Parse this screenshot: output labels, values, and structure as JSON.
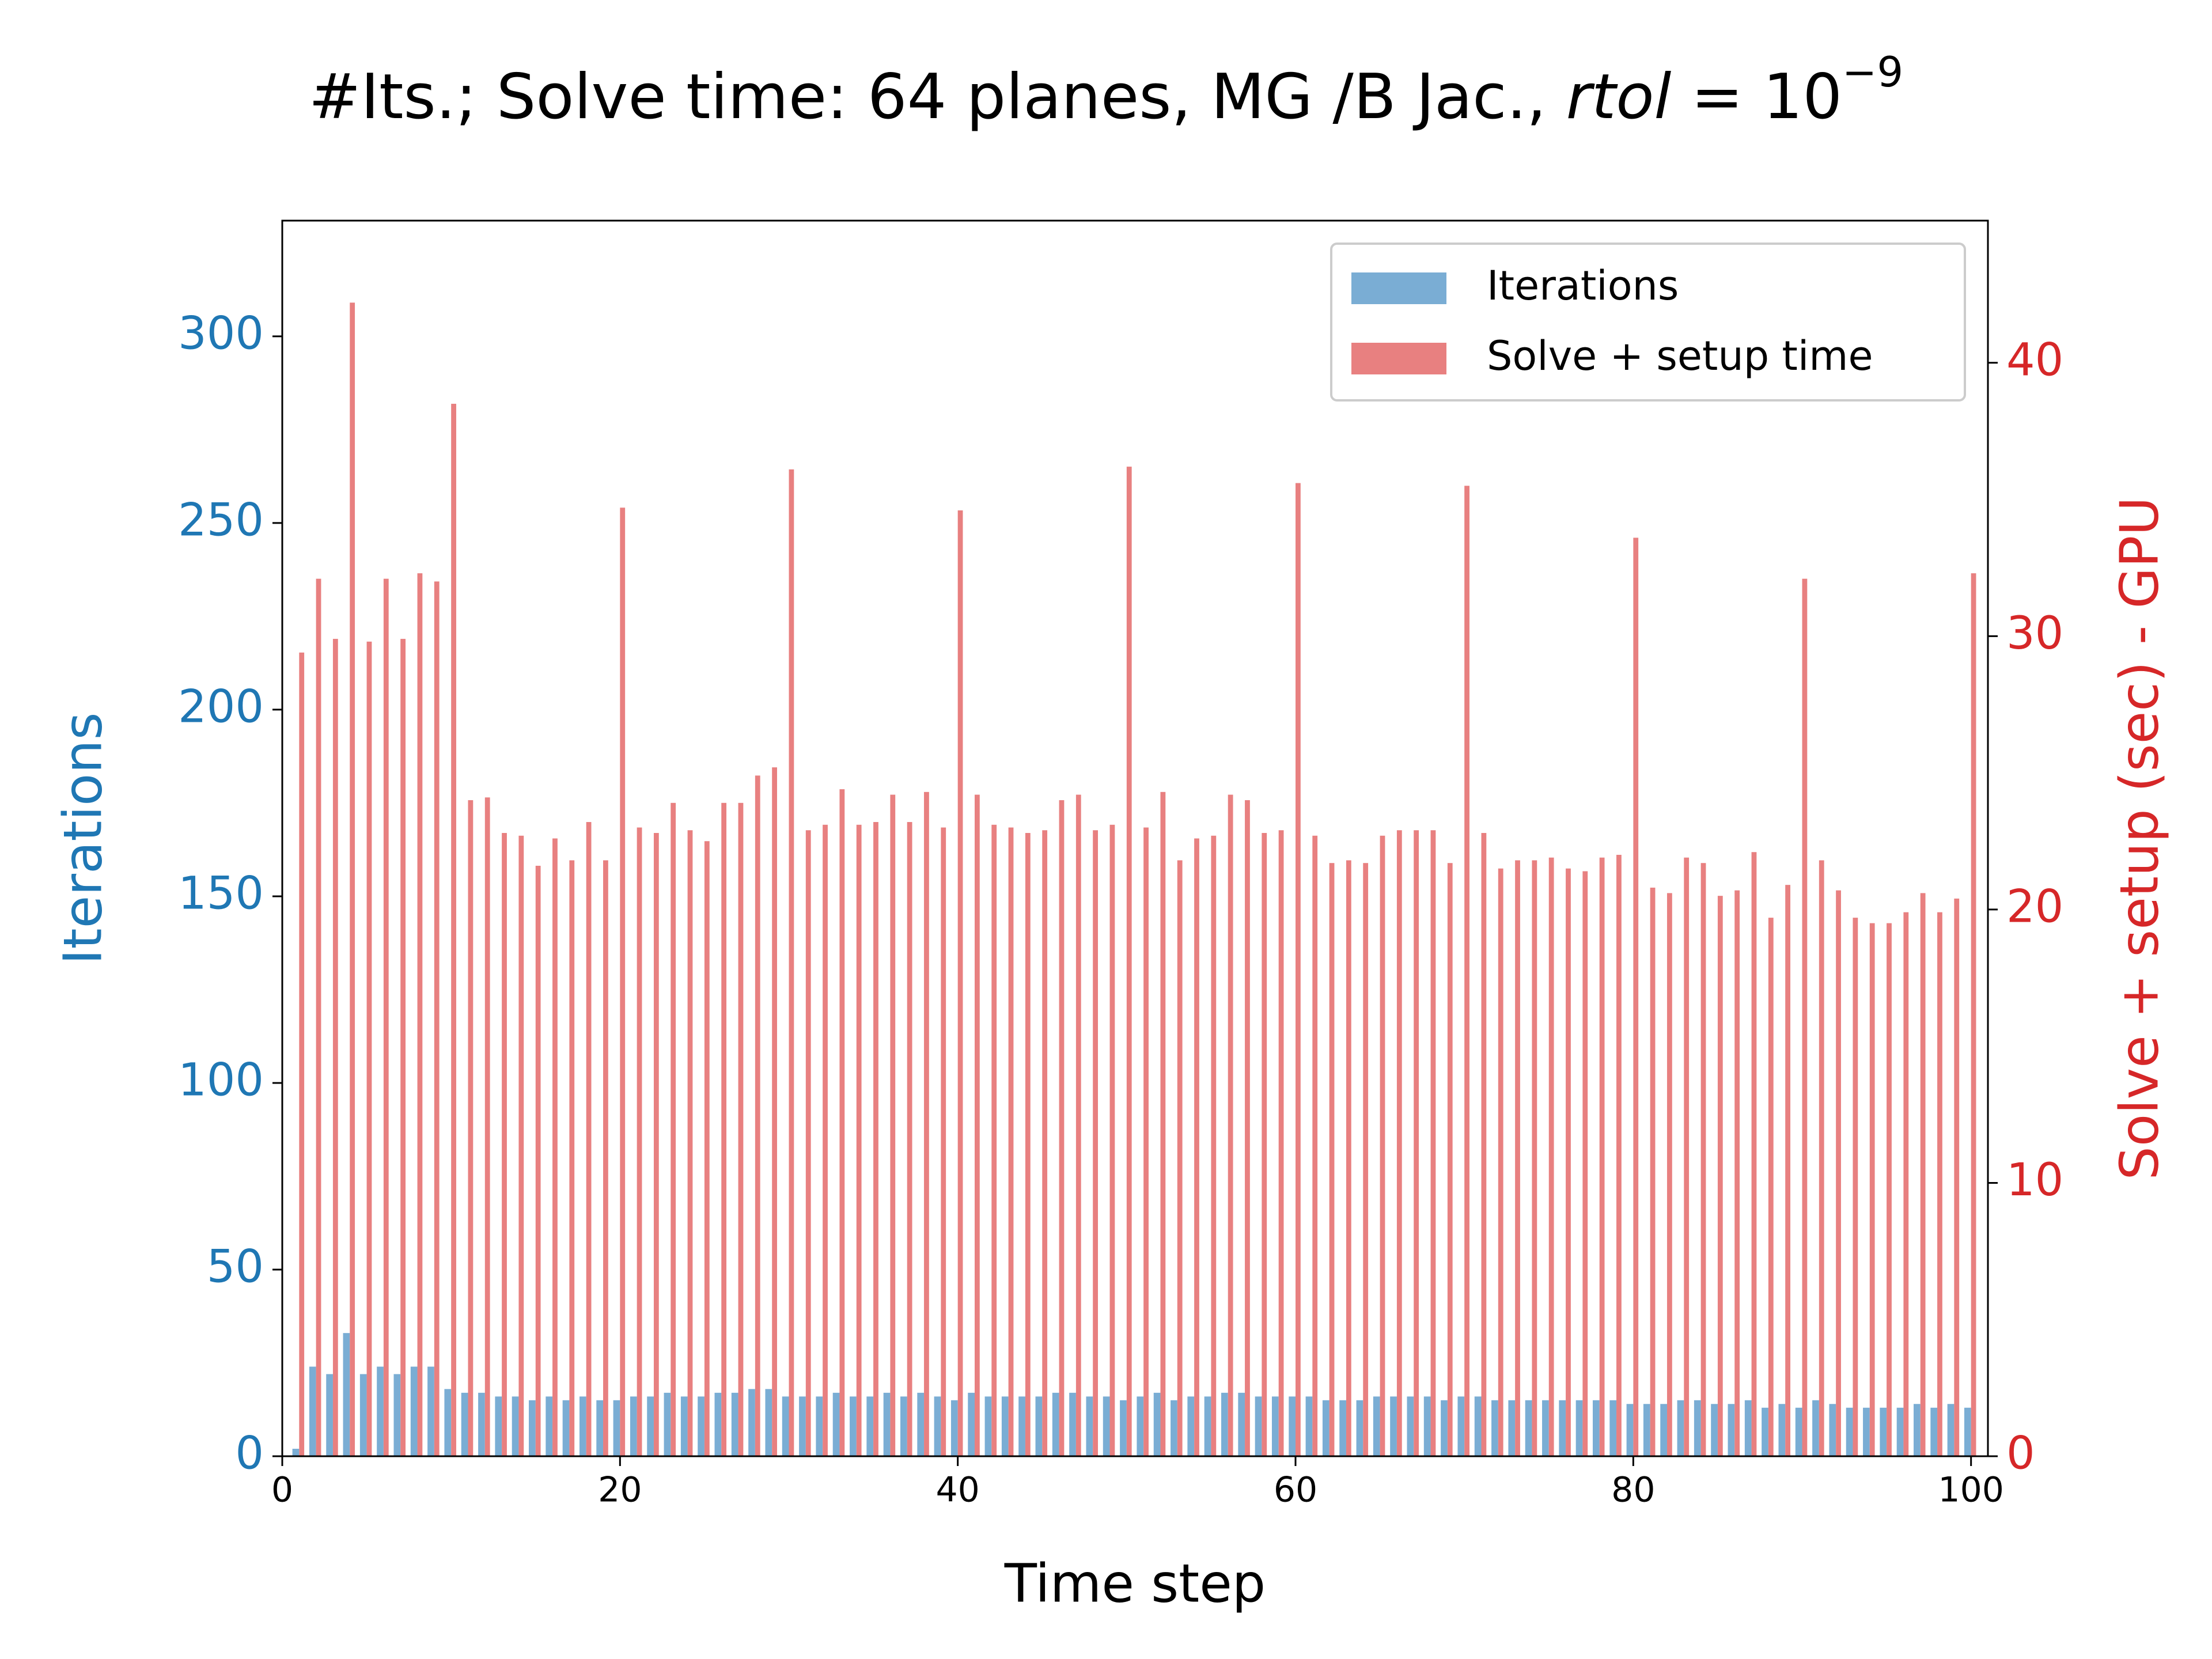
{
  "chart_data": {
    "type": "bar",
    "title": {
      "text": "#Its.; Solve time: 64 planes, MG /B Jac., ",
      "math_var": "rtol",
      "math_rest": " = 10",
      "exponent": "−9"
    },
    "xlabel": "Time step",
    "ylabel": "Iterations",
    "y2label": "Solve + setup (sec) - GPU",
    "x": [
      1,
      2,
      3,
      4,
      5,
      6,
      7,
      8,
      9,
      10,
      11,
      12,
      13,
      14,
      15,
      16,
      17,
      18,
      19,
      20,
      21,
      22,
      23,
      24,
      25,
      26,
      27,
      28,
      29,
      30,
      31,
      32,
      33,
      34,
      35,
      36,
      37,
      38,
      39,
      40,
      41,
      42,
      43,
      44,
      45,
      46,
      47,
      48,
      49,
      50,
      51,
      52,
      53,
      54,
      55,
      56,
      57,
      58,
      59,
      60,
      61,
      62,
      63,
      64,
      65,
      66,
      67,
      68,
      69,
      70,
      71,
      72,
      73,
      74,
      75,
      76,
      77,
      78,
      79,
      80,
      81,
      82,
      83,
      84,
      85,
      86,
      87,
      88,
      89,
      90,
      91,
      92,
      93,
      94,
      95,
      96,
      97,
      98,
      99,
      100
    ],
    "series": [
      {
        "name": "Iterations",
        "color": "#7aadd4",
        "axis": "y",
        "values": [
          2,
          24,
          22,
          33,
          22,
          24,
          22,
          24,
          24,
          18,
          17,
          17,
          16,
          16,
          15,
          16,
          15,
          16,
          15,
          15,
          16,
          16,
          17,
          16,
          16,
          17,
          17,
          18,
          18,
          16,
          16,
          16,
          17,
          16,
          16,
          17,
          16,
          17,
          16,
          15,
          17,
          16,
          16,
          16,
          16,
          17,
          17,
          16,
          16,
          15,
          16,
          17,
          15,
          16,
          16,
          17,
          17,
          16,
          16,
          16,
          16,
          15,
          15,
          15,
          16,
          16,
          16,
          16,
          15,
          16,
          16,
          15,
          15,
          15,
          15,
          15,
          15,
          15,
          15,
          14,
          14,
          14,
          15,
          15,
          14,
          14,
          15,
          13,
          14,
          13,
          15,
          14,
          13,
          13,
          13,
          13,
          14,
          13,
          14,
          13
        ]
      },
      {
        "name": "Solve + setup time",
        "color": "#e88080",
        "axis": "y2",
        "values": [
          29.4,
          32.1,
          29.9,
          42.2,
          29.8,
          32.1,
          29.9,
          32.3,
          32.0,
          38.5,
          24.0,
          24.1,
          22.8,
          22.7,
          21.6,
          22.6,
          21.8,
          23.2,
          21.8,
          34.7,
          23.0,
          22.8,
          23.9,
          22.9,
          22.5,
          23.9,
          23.9,
          24.9,
          25.2,
          36.1,
          22.9,
          23.1,
          24.4,
          23.1,
          23.2,
          24.2,
          23.2,
          24.3,
          23.0,
          34.6,
          24.2,
          23.1,
          23.0,
          22.8,
          22.9,
          24.0,
          24.2,
          22.9,
          23.1,
          36.2,
          23.0,
          24.3,
          21.8,
          22.6,
          22.7,
          24.2,
          24.0,
          22.8,
          22.9,
          35.6,
          22.7,
          21.7,
          21.8,
          21.7,
          22.7,
          22.9,
          22.9,
          22.9,
          21.7,
          35.5,
          22.8,
          21.5,
          21.8,
          21.8,
          21.9,
          21.5,
          21.4,
          21.9,
          22.0,
          33.6,
          20.8,
          20.6,
          21.9,
          21.7,
          20.5,
          20.7,
          22.1,
          19.7,
          20.9,
          32.1,
          21.8,
          20.7,
          19.7,
          19.5,
          19.5,
          19.9,
          20.6,
          19.9,
          20.4,
          32.3
        ]
      }
    ],
    "xlim": [
      0,
      101
    ],
    "xticks": [
      0,
      20,
      40,
      60,
      80,
      100
    ],
    "ylim": [
      0,
      331
    ],
    "yticks": [
      0,
      50,
      100,
      150,
      200,
      250,
      300
    ],
    "y2lim": [
      0,
      45.2
    ],
    "y2ticks": [
      0,
      10,
      20,
      30,
      40
    ],
    "ycolor": "#1f77b4",
    "y2color": "#d62728",
    "legend": "upper right",
    "grid": false
  }
}
